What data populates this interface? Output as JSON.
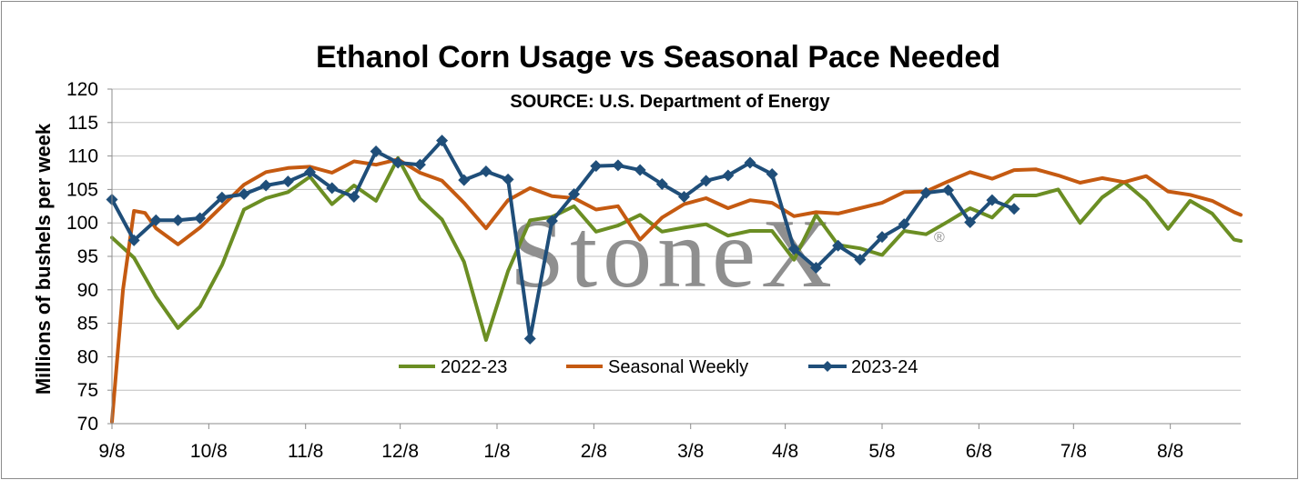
{
  "watermark": {
    "text": "StoneX",
    "mark": "®"
  },
  "chart_data": {
    "type": "line",
    "title": "Ethanol Corn Usage vs Seasonal Pace Needed",
    "subtitle": "SOURCE: U.S. Department of Energy",
    "xlabel": "",
    "ylabel": "Millions of bushels per week",
    "ylim": [
      70,
      120
    ],
    "yticks": [
      70,
      75,
      80,
      85,
      90,
      95,
      100,
      105,
      110,
      115,
      120
    ],
    "xlim": [
      0,
      51.3
    ],
    "xticks": [
      {
        "label": "9/8",
        "x": 0
      },
      {
        "label": "10/8",
        "x": 4.4
      },
      {
        "label": "11/8",
        "x": 8.8
      },
      {
        "label": "12/8",
        "x": 13.1
      },
      {
        "label": "1/8",
        "x": 17.5
      },
      {
        "label": "2/8",
        "x": 21.9
      },
      {
        "label": "3/8",
        "x": 26.3
      },
      {
        "label": "4/8",
        "x": 30.6
      },
      {
        "label": "5/8",
        "x": 35.0
      },
      {
        "label": "6/8",
        "x": 39.4
      },
      {
        "label": "7/8",
        "x": 43.7
      },
      {
        "label": "8/8",
        "x": 48.1
      }
    ],
    "grid": true,
    "legend_position": "bottom-center",
    "series": [
      {
        "name": "2022-23",
        "color": "#6b8e23",
        "marker": "none",
        "x": [
          0,
          1,
          2,
          3,
          4,
          5,
          6,
          7,
          8,
          9,
          10,
          11,
          12,
          13,
          14,
          15,
          16,
          17,
          18,
          19,
          20,
          21,
          22,
          23,
          24,
          25,
          26,
          27,
          28,
          29,
          30,
          31,
          32,
          33,
          34,
          35,
          36,
          37,
          38,
          39,
          40,
          41,
          42,
          43,
          44,
          45,
          46,
          47,
          48,
          49,
          50,
          51,
          51.3
        ],
        "values": [
          97.8,
          94.8,
          89,
          84.3,
          87.5,
          93.7,
          102,
          103.7,
          104.6,
          106.9,
          102.8,
          105.6,
          103.3,
          109.7,
          103.6,
          100.5,
          94.2,
          82.5,
          92.8,
          100.4,
          100.9,
          102.5,
          98.7,
          99.6,
          101.2,
          98.7,
          99.3,
          99.8,
          98.1,
          98.8,
          98.8,
          94.5,
          101.2,
          96.7,
          96.2,
          95.2,
          98.8,
          98.3,
          100.2,
          102.2,
          100.8,
          104.1,
          104.1,
          105,
          100,
          103.8,
          106.1,
          103.3,
          99.1,
          103.3,
          101.4,
          97.5,
          97.3
        ]
      },
      {
        "name": "Seasonal Weekly",
        "color": "#c55a11",
        "marker": "none",
        "x": [
          0,
          0.5,
          1,
          1.5,
          2,
          3,
          4,
          5,
          6,
          7,
          8,
          9,
          10,
          11,
          12,
          13,
          14,
          15,
          16,
          17,
          18,
          19,
          20,
          21,
          22,
          23,
          24,
          25,
          26,
          27,
          28,
          29,
          30,
          31,
          32,
          33,
          34,
          35,
          36,
          37,
          38,
          39,
          40,
          41,
          42,
          43,
          44,
          45,
          46,
          47,
          48,
          49,
          50,
          51,
          51.3
        ],
        "values": [
          70.3,
          90,
          101.8,
          101.5,
          99.2,
          96.8,
          99.3,
          102.5,
          105.7,
          107.6,
          108.2,
          108.4,
          107.5,
          109.2,
          108.7,
          109.5,
          107.5,
          106.3,
          103,
          99.2,
          103.4,
          105.2,
          104,
          103.7,
          102,
          102.5,
          97.5,
          100.8,
          102.8,
          103.7,
          102.2,
          103.4,
          103,
          101,
          101.6,
          101.4,
          102.2,
          103,
          104.6,
          104.7,
          106.2,
          107.6,
          106.6,
          107.9,
          108,
          107.1,
          106,
          106.7,
          106.1,
          107,
          104.7,
          104.2,
          103.3,
          101.6,
          101.2
        ]
      },
      {
        "name": "2023-24",
        "color": "#1f4e79",
        "marker": "diamond",
        "x": [
          0,
          1,
          2,
          3,
          4,
          5,
          6,
          7,
          8,
          9,
          10,
          11,
          12,
          13,
          14,
          15,
          16,
          17,
          18,
          19,
          20,
          21,
          22,
          23,
          24,
          25,
          26,
          27,
          28,
          29,
          30,
          31,
          32,
          33,
          34,
          35,
          36,
          37,
          38,
          39,
          40,
          41
        ],
        "values": [
          103.5,
          97.4,
          100.4,
          100.4,
          100.7,
          103.8,
          104.3,
          105.6,
          106.2,
          107.6,
          105.2,
          103.9,
          110.7,
          109,
          108.7,
          112.3,
          106.4,
          107.7,
          106.5,
          82.7,
          100.3,
          104.3,
          108.5,
          108.6,
          107.9,
          105.8,
          103.9,
          106.3,
          107.1,
          109,
          107.3,
          96.1,
          93.3,
          96.6,
          94.5,
          97.9,
          99.8,
          104.5,
          104.9,
          100.1,
          103.4,
          102.1
        ]
      }
    ]
  }
}
